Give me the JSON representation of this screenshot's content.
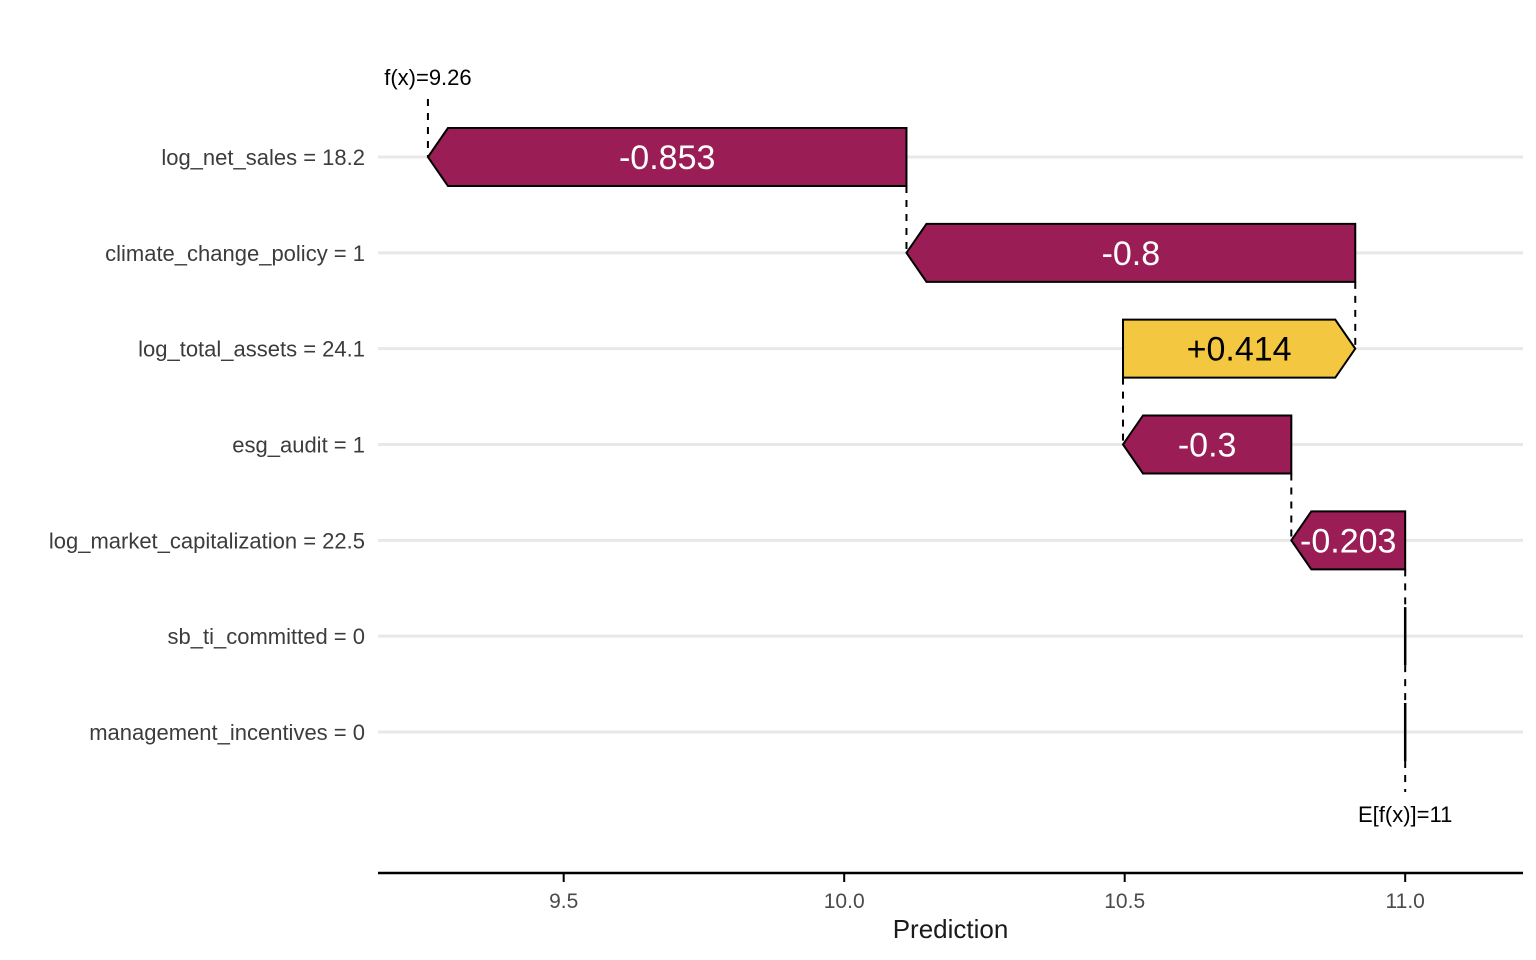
{
  "chart_data": {
    "type": "waterfall",
    "title": "",
    "xlabel": "Prediction",
    "ylabel": "",
    "xlim": [
      9.169,
      11.21
    ],
    "x_ticks": [
      {
        "value": 9.5,
        "label": "9.5"
      },
      {
        "value": 10.0,
        "label": "10.0"
      },
      {
        "value": 10.5,
        "label": "10.5"
      },
      {
        "value": 11.0,
        "label": "11.0"
      }
    ],
    "fx": {
      "value": 9.258,
      "label": "f(x)=9.26"
    },
    "efx": {
      "value": 11.0,
      "label": "E[f(x)]=11"
    },
    "features": [
      {
        "name": "log_net_sales",
        "axis_label": "log_net_sales = 18.2",
        "shap": -0.853,
        "bar_label": "-0.853",
        "from": 10.111,
        "to": 9.258
      },
      {
        "name": "climate_change_policy",
        "axis_label": "climate_change_policy = 1",
        "shap": -0.8,
        "bar_label": "-0.8",
        "from": 10.911,
        "to": 10.111
      },
      {
        "name": "log_total_assets",
        "axis_label": "log_total_assets = 24.1",
        "shap": 0.414,
        "bar_label": "+0.414",
        "from": 10.497,
        "to": 10.911
      },
      {
        "name": "esg_audit",
        "axis_label": "esg_audit = 1",
        "shap": -0.3,
        "bar_label": "-0.3",
        "from": 10.797,
        "to": 10.497
      },
      {
        "name": "log_market_capitalization",
        "axis_label": "log_market_capitalization = 22.5",
        "shap": -0.203,
        "bar_label": "-0.203",
        "from": 11.0,
        "to": 10.797
      },
      {
        "name": "sb_ti_committed",
        "axis_label": "sb_ti_committed = 0",
        "shap": 0,
        "bar_label": "",
        "from": 11.0,
        "to": 11.0
      },
      {
        "name": "management_incentives",
        "axis_label": "management_incentives = 0",
        "shap": 0,
        "bar_label": "",
        "from": 11.0,
        "to": 11.0
      }
    ],
    "colors": {
      "negative": "#9b1d56",
      "positive": "#f4c740",
      "outline": "#000000",
      "gridline": "#e8e8e8",
      "axis_line": "#000000",
      "tick_text": "#4a4a4a",
      "y_label_text": "#3c3c3c",
      "annotation_text": "#000000",
      "axis_title_text": "#1a1a1a",
      "negative_bar_label": "#ffffff",
      "positive_bar_label": "#000000"
    }
  }
}
